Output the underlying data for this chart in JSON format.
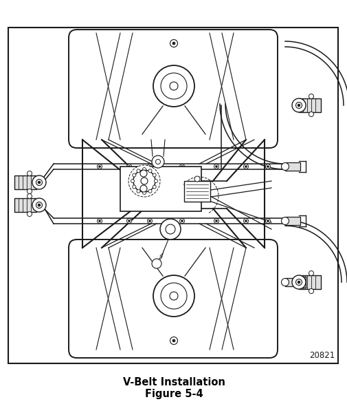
{
  "title_line1": "V-Belt Installation",
  "title_line2": "Figure 5-4",
  "figure_number": "20821",
  "bg_color": "#ffffff",
  "lc": "#1a1a1a",
  "title_fontsize": 10.5,
  "fig_num_fontsize": 8.5
}
